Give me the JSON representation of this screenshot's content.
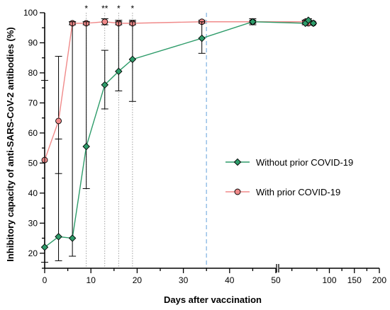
{
  "chart_data": {
    "type": "line",
    "xlabel": "Days after vaccination",
    "ylabel": "Inhibitory capacity of anti-SARS-CoV-2 antibodies (%)",
    "x_ticks_left": [
      "0",
      "10",
      "20",
      "30",
      "40",
      "50"
    ],
    "x_ticks_right": [
      "100",
      "150",
      "200"
    ],
    "y_ticks": [
      "20",
      "30",
      "40",
      "50",
      "60",
      "70",
      "80",
      "90",
      "100"
    ],
    "x_break_after": 50,
    "ylim": [
      15,
      100
    ],
    "reference_line_x": 35,
    "colors": {
      "series_without": "#2e9c6a",
      "series_with": "#f08a8a",
      "reference_line": "#9ec4e8"
    },
    "series": [
      {
        "name": "Without prior COVID-19",
        "marker": "diamond",
        "x": [
          0,
          3,
          6,
          9,
          13,
          16,
          19,
          34,
          45,
          52,
          58,
          68
        ],
        "y": [
          22,
          25.5,
          25,
          55.5,
          76,
          80.5,
          84.5,
          91.5,
          97,
          96.5,
          97.5,
          96.5
        ],
        "err_low": [
          17,
          17.5,
          19,
          41.5,
          68,
          74,
          70.5,
          86.5,
          96,
          96,
          97,
          96.5
        ],
        "err_high": [
          77.5,
          58,
          97,
          97,
          87.5,
          97,
          97,
          97,
          98,
          97.5,
          98,
          96.5
        ]
      },
      {
        "name": "With prior COVID-19",
        "marker": "circle",
        "x": [
          0,
          3,
          6,
          9,
          13,
          16,
          19,
          34,
          45,
          52,
          58,
          68
        ],
        "y": [
          51,
          64,
          96.5,
          96.5,
          97,
          96.5,
          96.5,
          97,
          97,
          97,
          96.5,
          96.5
        ],
        "err_low": [
          51,
          46.5,
          96,
          96,
          96,
          96,
          96,
          96.5,
          96.5,
          96.5,
          96,
          96.5
        ],
        "err_high": [
          51,
          85.5,
          97,
          97,
          98,
          97.5,
          97.5,
          97.5,
          97.5,
          97.5,
          97,
          96.5
        ]
      }
    ],
    "significance": [
      {
        "x": 9,
        "label": "*"
      },
      {
        "x": 13,
        "label": "**"
      },
      {
        "x": 16,
        "label": "*"
      },
      {
        "x": 19,
        "label": "*"
      }
    ],
    "legend": {
      "placement": "right"
    }
  }
}
